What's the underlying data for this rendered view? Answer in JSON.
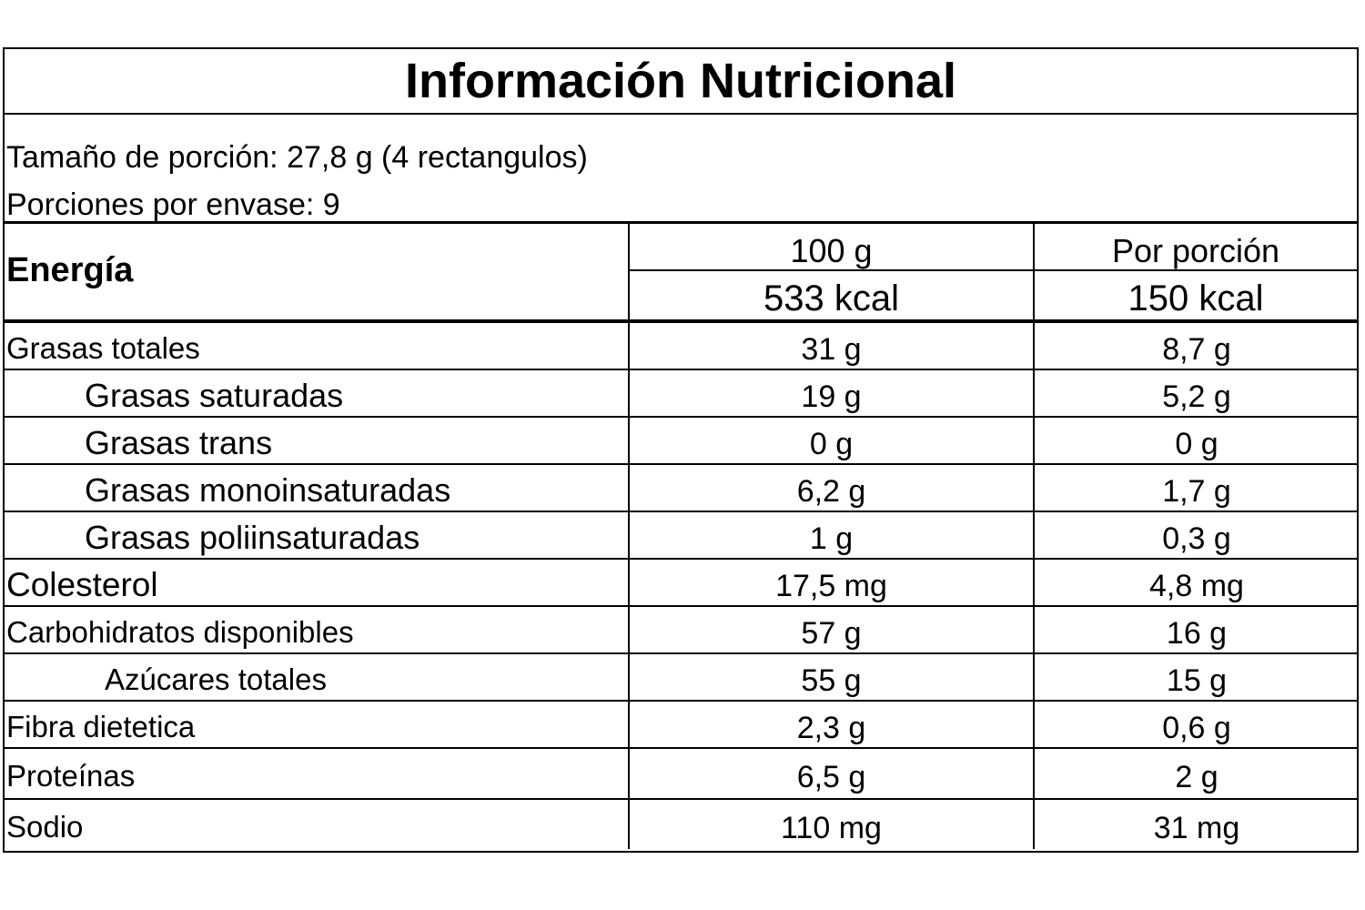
{
  "title": "Información Nutricional",
  "serving_size": "Tamaño de porción: 27,8 g (4 rectangulos)",
  "servings_per_container": "Porciones por envase: 9",
  "energy": {
    "label": "Energía",
    "col_100g_header": "100 g",
    "col_portion_header": "Por porción",
    "kcal_100g": "533 kcal",
    "kcal_portion": "150 kcal"
  },
  "nutrients": [
    {
      "name": "Grasas totales",
      "per100": "31 g",
      "perPortion": "8,7 g"
    },
    {
      "name": "Grasas saturadas",
      "per100": "19 g",
      "perPortion": "5,2 g"
    },
    {
      "name": "Grasas trans",
      "per100": "0 g",
      "perPortion": "0 g"
    },
    {
      "name": "Grasas monoinsaturadas",
      "per100": "6,2 g",
      "perPortion": "1,7 g"
    },
    {
      "name": "Grasas poliinsaturadas",
      "per100": "1 g",
      "perPortion": "0,3 g"
    },
    {
      "name": "Colesterol",
      "per100": "17,5 mg",
      "perPortion": "4,8 mg"
    },
    {
      "name": "Carbohidratos disponibles",
      "per100": "57 g",
      "perPortion": "16 g"
    },
    {
      "name": "Azúcares totales",
      "per100": "55 g",
      "perPortion": "15 g"
    },
    {
      "name": "Fibra dietetica",
      "per100": "2,3 g",
      "perPortion": "0,6 g"
    },
    {
      "name": "Proteínas",
      "per100": "6,5 g",
      "perPortion": "2 g"
    },
    {
      "name": "Sodio",
      "per100": "110 mg",
      "perPortion": "31 mg"
    }
  ]
}
